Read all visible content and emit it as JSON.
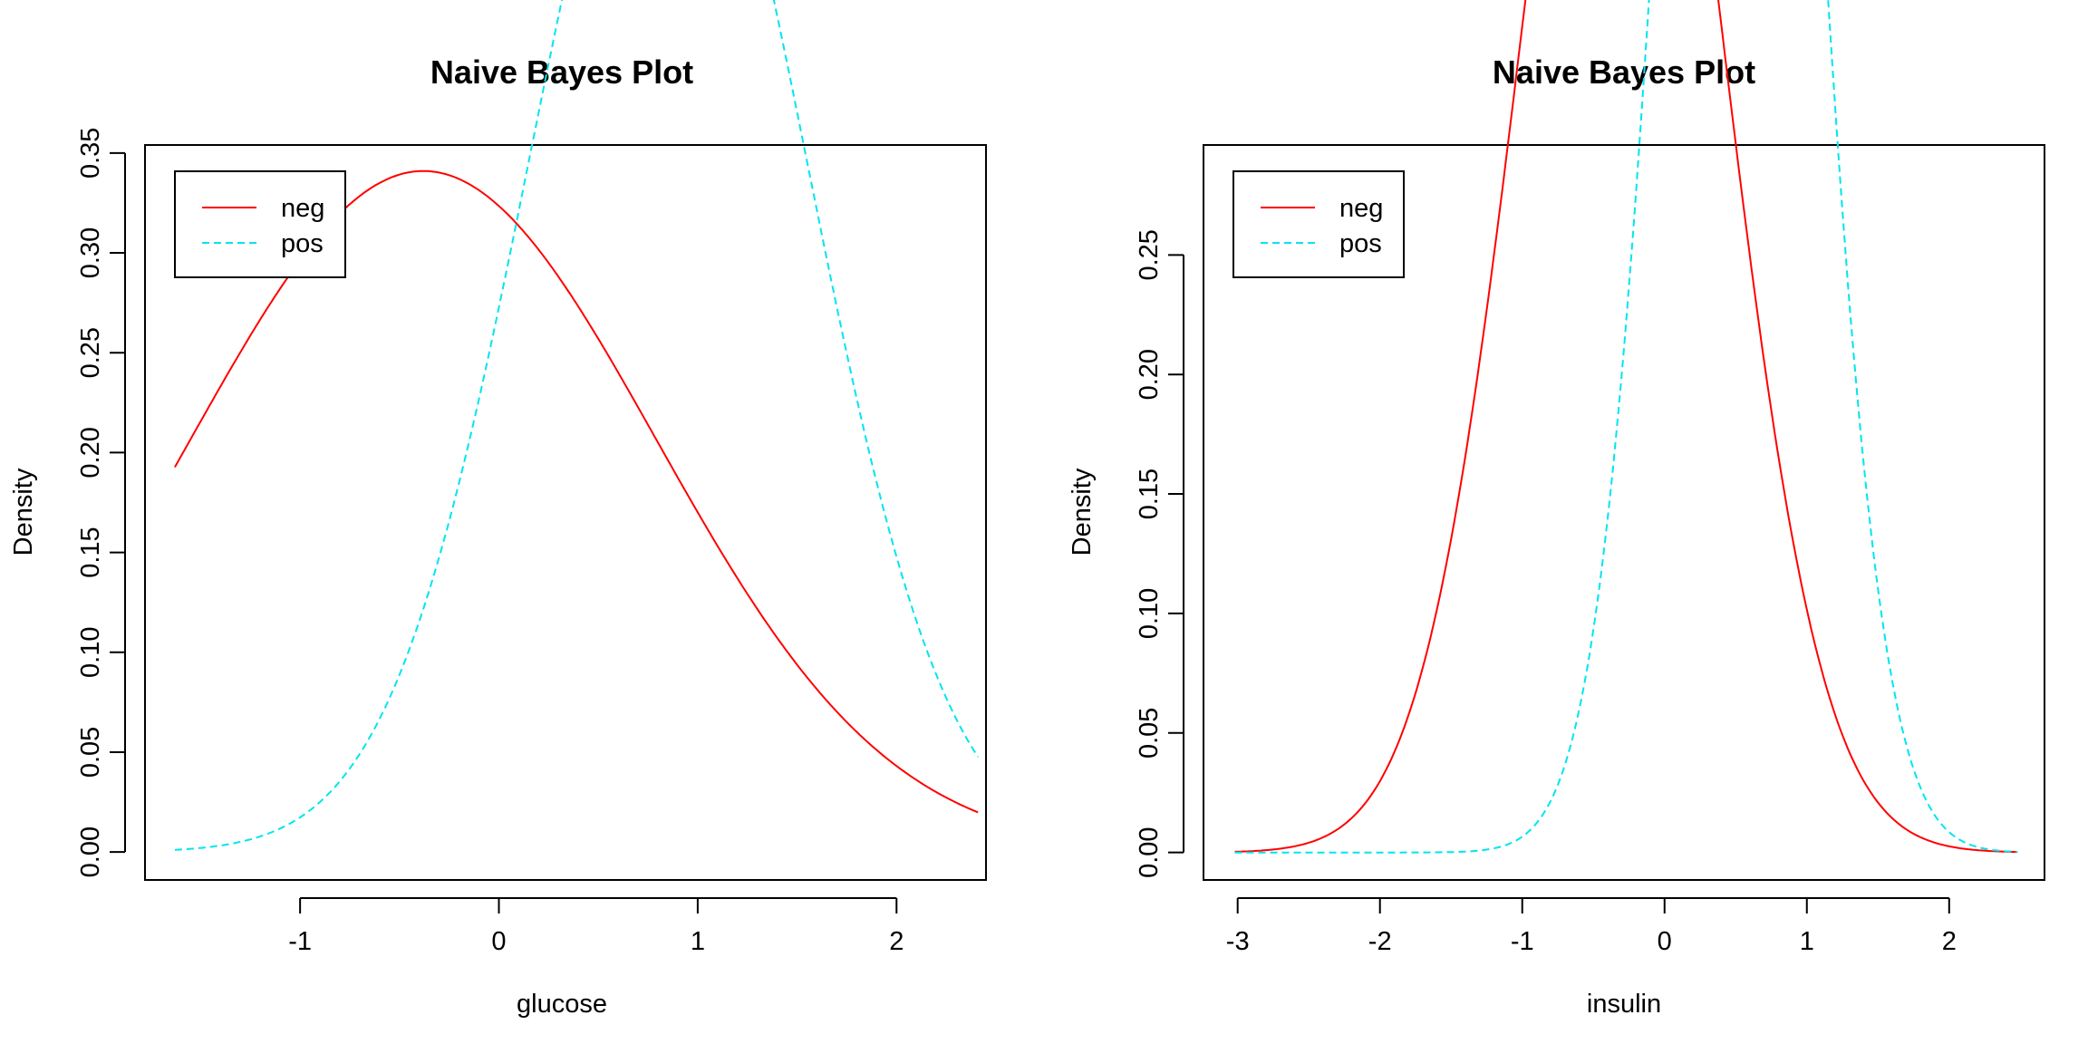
{
  "chart_data": [
    {
      "type": "line",
      "title": "Naive Bayes Plot",
      "xlabel": "glucose",
      "ylabel": "Density",
      "xlim": [
        -1.78,
        2.45
      ],
      "ylim": [
        -0.014,
        0.354
      ],
      "xticks": [
        -1,
        0,
        1,
        2
      ],
      "yticks": [
        0.0,
        0.05,
        0.1,
        0.15,
        0.2,
        0.25,
        0.3,
        0.35
      ],
      "ytick_labels": [
        "0.00",
        "0.05",
        "0.10",
        "0.15",
        "0.20",
        "0.25",
        "0.30",
        "0.35"
      ],
      "grid": false,
      "legend_position": "top-left",
      "x_range": [
        -1.63,
        2.41
      ],
      "series": [
        {
          "name": "neg",
          "color": "#ff0000",
          "style": "solid",
          "mean": -0.38,
          "sd": 1.17
        },
        {
          "name": "pos",
          "color": "#00e5ee",
          "style": "dashed",
          "mean": 0.85,
          "sd": 0.7
        }
      ]
    },
    {
      "type": "line",
      "title": "Naive Bayes Plot",
      "xlabel": "insulin",
      "ylabel": "Density",
      "xlim": [
        -3.24,
        2.67
      ],
      "ylim": [
        -0.0115,
        0.296
      ],
      "xticks": [
        -3,
        -2,
        -1,
        0,
        1,
        2
      ],
      "yticks": [
        0.0,
        0.05,
        0.1,
        0.15,
        0.2,
        0.25
      ],
      "ytick_labels": [
        "0.00",
        "0.05",
        "0.10",
        "0.15",
        "0.20",
        "0.25"
      ],
      "grid": false,
      "legend_position": "top-left",
      "x_range": [
        -3.02,
        2.48
      ],
      "series": [
        {
          "name": "neg",
          "color": "#ff0000",
          "style": "solid",
          "mean": -0.3,
          "sd": 0.7
        },
        {
          "name": "pos",
          "color": "#00e5ee",
          "style": "dashed",
          "mean": 0.52,
          "sd": 0.49
        }
      ]
    }
  ]
}
